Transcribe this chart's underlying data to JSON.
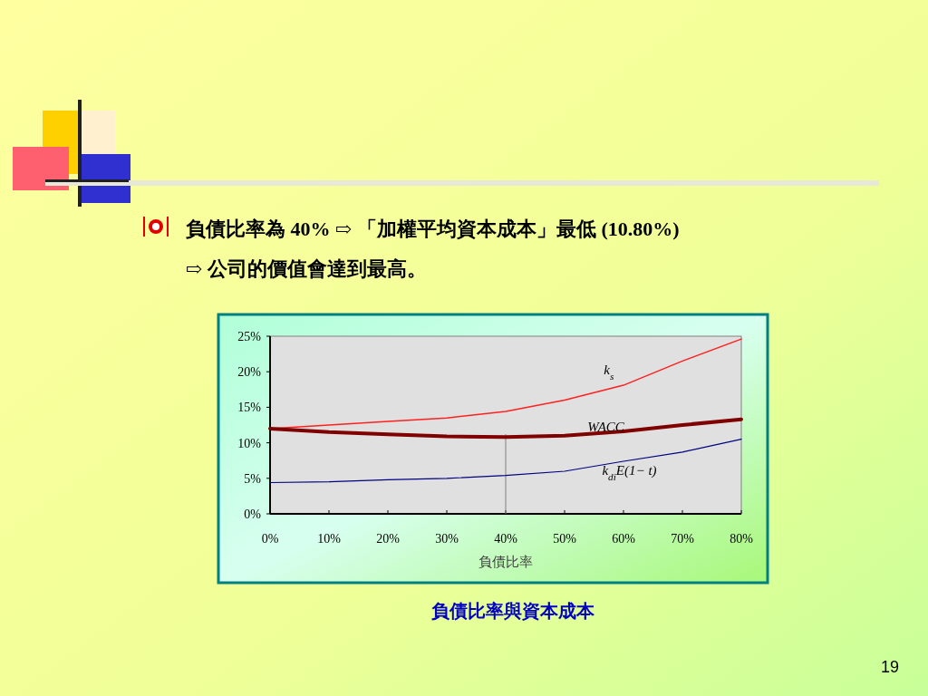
{
  "chart_data": {
    "type": "line",
    "title": "負債比率為 40%  ⇨ 「加權平均資本成本」最低 (10.80%)",
    "subtitle": "⇨ 公司的價值會達到最高。",
    "xlabel": "負債比率",
    "x": [
      0,
      10,
      20,
      30,
      40,
      50,
      60,
      70,
      80
    ],
    "xlim": [
      0,
      80
    ],
    "xticks": [
      {
        "value": 0,
        "label": "0%"
      },
      {
        "value": 10,
        "label": "10%"
      },
      {
        "value": 20,
        "label": "20%"
      },
      {
        "value": 30,
        "label": "30%"
      },
      {
        "value": 40,
        "label": "40%"
      },
      {
        "value": 50,
        "label": "50%"
      },
      {
        "value": 60,
        "label": "60%"
      },
      {
        "value": 70,
        "label": "70%"
      },
      {
        "value": 80,
        "label": "80%"
      }
    ],
    "ylim": [
      0,
      25
    ],
    "yticks": [
      {
        "value": 0,
        "label": "0%"
      },
      {
        "value": 5,
        "label": "5%"
      },
      {
        "value": 10,
        "label": "10%"
      },
      {
        "value": 15,
        "label": "15%"
      },
      {
        "value": 20,
        "label": "20%"
      },
      {
        "value": 25,
        "label": "25%"
      }
    ],
    "series": [
      {
        "name": "k$_{s}$",
        "color": "#ff2020",
        "values": [
          12.0,
          12.5,
          13.0,
          13.5,
          14.4,
          16.0,
          18.1,
          21.5,
          24.6
        ]
      },
      {
        "name": "WACC",
        "color": "#800000",
        "values": [
          12.0,
          11.5,
          11.2,
          10.9,
          10.8,
          11.0,
          11.6,
          12.5,
          13.3
        ]
      },
      {
        "name": "k$_{di}$E(1− t)",
        "color": "#000080",
        "values": [
          4.4,
          4.5,
          4.8,
          5.0,
          5.4,
          6.0,
          7.4,
          8.7,
          10.5
        ]
      }
    ],
    "ref_lines": [
      {
        "axis": "x",
        "value": 40,
        "color": "#808080"
      }
    ],
    "grid": false,
    "legend": false,
    "marker": "none",
    "line_style": "solid",
    "annotations": [
      "負債比率與資本成本",
      "19"
    ]
  }
}
